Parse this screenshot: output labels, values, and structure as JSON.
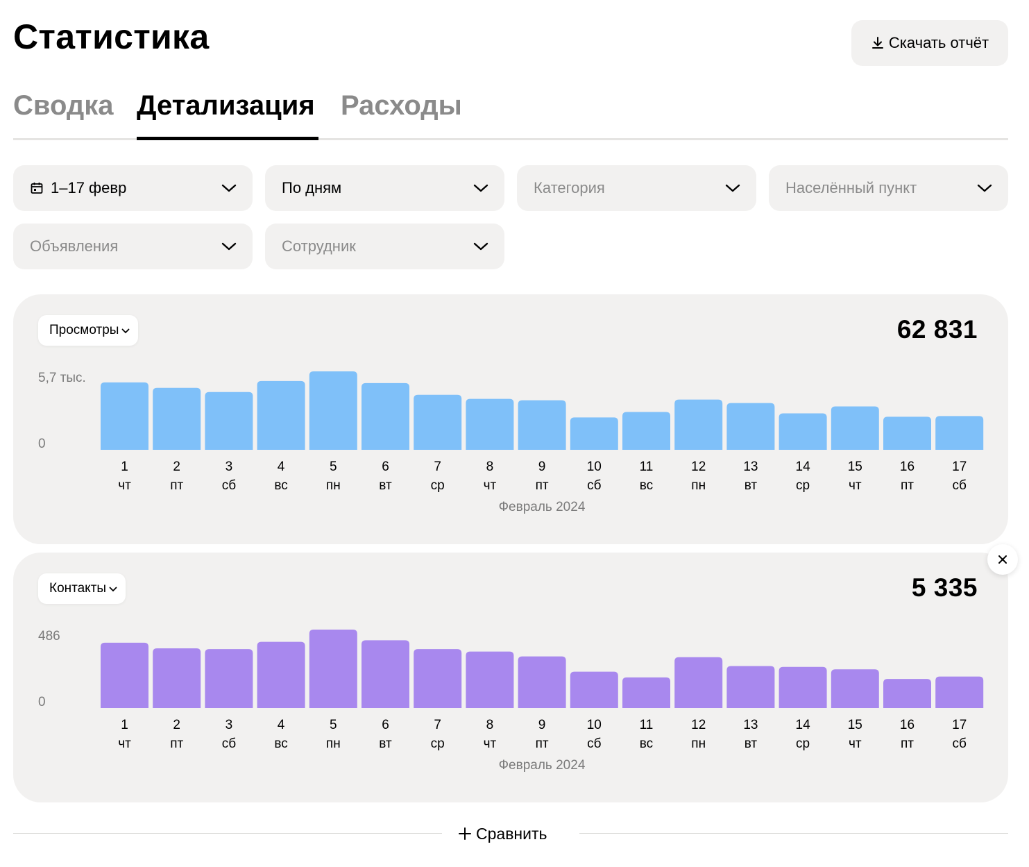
{
  "header": {
    "title": "Статистика",
    "download_label": "Скачать отчёт"
  },
  "tabs": [
    {
      "label": "Сводка",
      "active": false
    },
    {
      "label": "Детализация",
      "active": true
    },
    {
      "label": "Расходы",
      "active": false
    }
  ],
  "filters": {
    "period": "1–17 февр",
    "grouping": "По дням",
    "category_placeholder": "Категория",
    "locality_placeholder": "Населённый пункт",
    "ads_placeholder": "Объявления",
    "employee_placeholder": "Сотрудник"
  },
  "compare_label": "Сравнить",
  "chart_data": [
    {
      "type": "bar",
      "metric_label": "Просмотры",
      "total": "62 831",
      "y_max_label": "5,7 тыс.",
      "y_zero_label": "0",
      "ylim": [
        0,
        5700
      ],
      "month_label": "Февраль 2024",
      "color": "#7fc0f9",
      "categories": [
        "1",
        "2",
        "3",
        "4",
        "5",
        "6",
        "7",
        "8",
        "9",
        "10",
        "11",
        "12",
        "13",
        "14",
        "15",
        "16",
        "17"
      ],
      "weekdays": [
        "чт",
        "пт",
        "сб",
        "вс",
        "пн",
        "вт",
        "ср",
        "чт",
        "пт",
        "сб",
        "вс",
        "пн",
        "вт",
        "ср",
        "чт",
        "пт",
        "сб"
      ],
      "values": [
        4900,
        4500,
        4200,
        5000,
        5700,
        4850,
        4000,
        3700,
        3600,
        2350,
        2750,
        3650,
        3400,
        2650,
        3150,
        2400,
        2450
      ]
    },
    {
      "type": "bar",
      "metric_label": "Контакты",
      "total": "5 335",
      "y_max_label": "486",
      "y_zero_label": "0",
      "ylim": [
        0,
        486
      ],
      "month_label": "Февраль 2024",
      "color": "#a888ee",
      "categories": [
        "1",
        "2",
        "3",
        "4",
        "5",
        "6",
        "7",
        "8",
        "9",
        "10",
        "11",
        "12",
        "13",
        "14",
        "15",
        "16",
        "17"
      ],
      "weekdays": [
        "чт",
        "пт",
        "сб",
        "вс",
        "пн",
        "вт",
        "ср",
        "чт",
        "пт",
        "сб",
        "вс",
        "пн",
        "вт",
        "ср",
        "чт",
        "пт",
        "сб"
      ],
      "values": [
        405,
        370,
        365,
        410,
        486,
        420,
        365,
        350,
        320,
        225,
        190,
        315,
        260,
        255,
        240,
        180,
        195
      ]
    }
  ]
}
